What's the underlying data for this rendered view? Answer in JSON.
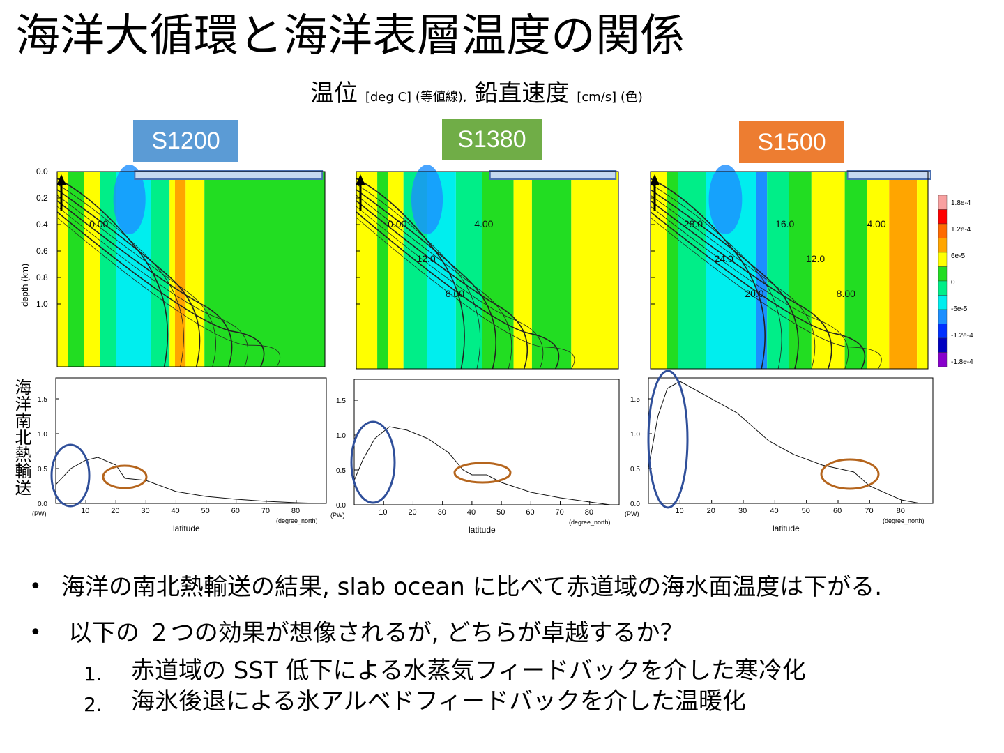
{
  "slide": {
    "title": "海洋大循環と海洋表層温度の関係",
    "subtitle": {
      "part1": "温位",
      "part1_unit": "[deg C] (等値線),",
      "part2": "鉛直速度",
      "part2_unit": "[cm/s] (色)"
    }
  },
  "panels": [
    {
      "label": "S1200",
      "color": "#5b9bd5",
      "contour_labels": [
        "0.00"
      ],
      "transport": {
        "x": [
          0,
          5,
          10,
          14,
          20,
          23,
          30,
          40,
          50,
          60,
          70,
          80,
          88
        ],
        "y": [
          0.27,
          0.5,
          0.62,
          0.66,
          0.55,
          0.36,
          0.33,
          0.17,
          0.1,
          0.06,
          0.03,
          0.01,
          0.0
        ]
      }
    },
    {
      "label": "S1380",
      "color": "#70ad47",
      "contour_labels": [
        "0.00",
        "12.0",
        "8.00",
        "4.00"
      ],
      "transport": {
        "x": [
          0,
          3,
          7,
          12,
          18,
          25,
          32,
          37,
          40,
          45,
          50,
          60,
          70,
          80,
          87
        ],
        "y": [
          0.35,
          0.65,
          0.95,
          1.12,
          1.07,
          0.95,
          0.75,
          0.5,
          0.43,
          0.43,
          0.32,
          0.18,
          0.1,
          0.04,
          0.0
        ]
      }
    },
    {
      "label": "S1500",
      "color": "#ed7d31",
      "contour_labels": [
        "28.0",
        "24.0",
        "20.0",
        "16.0",
        "12.0",
        "8.00",
        "4.00"
      ],
      "transport": {
        "x": [
          0,
          3,
          6,
          10,
          18,
          28,
          38,
          46,
          55,
          62,
          65,
          70,
          80,
          86
        ],
        "y": [
          0.5,
          1.25,
          1.65,
          1.75,
          1.55,
          1.3,
          0.9,
          0.7,
          0.55,
          0.48,
          0.45,
          0.25,
          0.05,
          0.0
        ]
      }
    }
  ],
  "depth_axis": {
    "label": "depth (km)",
    "ticks": [
      "0.0",
      "0.2",
      "0.4",
      "0.6",
      "0.8",
      "1.0"
    ]
  },
  "colorbar": {
    "ticks": [
      "1.8e-4",
      "1.2e-4",
      "6e-5",
      "0",
      "-6e-5",
      "-1.2e-4",
      "-1.8e-4"
    ],
    "colors": [
      "#f8a0a0",
      "#ff0000",
      "#ff6a00",
      "#ffa500",
      "#ffff00",
      "#22dd22",
      "#00ee88",
      "#00eeee",
      "#1c8fff",
      "#0030ff",
      "#0000c0",
      "#8800cc"
    ]
  },
  "transport_axis": {
    "ylabel": "海洋南北熱輸送",
    "unit": "(PW)",
    "xlabel": "latitude",
    "xunit": "(degree_north)",
    "yticks": [
      "0.0",
      "0.5",
      "1.0",
      "1.5"
    ],
    "xticks": [
      "10",
      "20",
      "30",
      "40",
      "50",
      "60",
      "70",
      "80"
    ],
    "ylim": [
      0,
      1.8
    ],
    "xlim": [
      0,
      90
    ]
  },
  "bullets": [
    {
      "text": "海洋の南北熱輸送の結果, slab ocean に比べて赤道域の海水面温度は下がる."
    },
    {
      "text": "以下の ２つの効果が想像されるが, どちらが卓越するか？"
    }
  ],
  "numbered": [
    {
      "num": "1.",
      "text": "赤道域の SST 低下による水蒸気フィードバックを介した寒冷化"
    },
    {
      "num": "2.",
      "text": "海氷後退による氷アルベドフィードバックを介した温暖化"
    }
  ]
}
